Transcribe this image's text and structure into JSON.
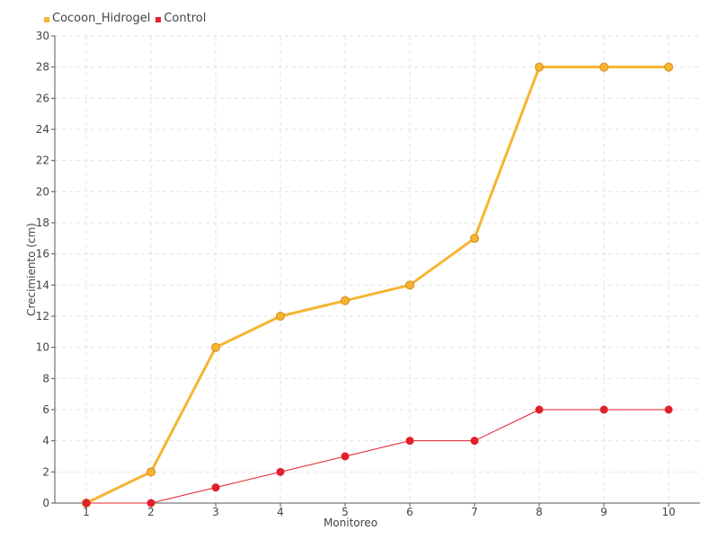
{
  "chart_data": {
    "type": "line",
    "xlabel": "Monitoreo",
    "ylabel": "Crecimiento (cm)",
    "x": [
      1,
      2,
      3,
      4,
      5,
      6,
      7,
      8,
      9,
      10
    ],
    "ylim": [
      0,
      30
    ],
    "yticks": [
      0,
      2,
      4,
      6,
      8,
      10,
      12,
      14,
      16,
      18,
      20,
      22,
      24,
      26,
      28,
      30
    ],
    "grid": true,
    "legend_position": "top-left",
    "series": [
      {
        "name": "Cocoon_Hidrogel",
        "color": "#f5b531",
        "values": [
          0,
          2,
          10,
          12,
          13,
          14,
          17,
          28,
          28,
          28
        ]
      },
      {
        "name": "Control",
        "color": "#e0212b",
        "values": [
          0,
          0,
          1,
          2,
          3,
          4,
          4,
          6,
          6,
          6
        ]
      }
    ]
  }
}
